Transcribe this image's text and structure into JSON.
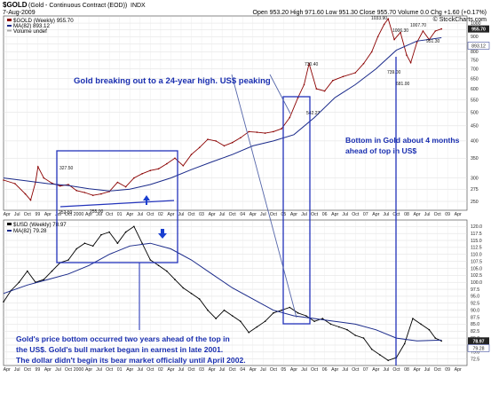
{
  "header": {
    "symbol": "$GOLD",
    "name": "(Gold - Continuous Contract (EOD))",
    "exchange": "INDX",
    "date": "7-Aug-2009",
    "ohlc": "Open 953.20  High 971.60  Low 951.30  Close 955.70  Volume 0.0  Chg +1.60 (+0.17%)",
    "brand": "© StockCharts.com"
  },
  "top_legend": {
    "main": "$GOLD (Weekly) 955.70",
    "ma": "MA(82) 893.12",
    "vol": "Volume undef"
  },
  "bottom_legend": {
    "main": "$USD (Weekly) 78.97",
    "ma": "MA(82) 79.28"
  },
  "annotations": {
    "gold_breakout": "Gold breaking out to a 24-year high. US$ peaking",
    "bottom_lines": [
      "Bottom in Gold about 4 months",
      "ahead of top in US$"
    ],
    "footnote_lines": [
      "Gold's price bottom occurred two years ahead of the top in",
      "the US$. Gold's bull market began in earnest in late 2001.",
      "The dollar didn't begin its bear market officially until April 2002."
    ]
  },
  "colors": {
    "annotation": "#1a2fb0",
    "price": "#8b0000",
    "ma": "#1a2a8a",
    "usd": "#000000"
  },
  "x_axis_labels": [
    "Apr",
    "Jul",
    "Oct",
    "99",
    "Apr",
    "Jul",
    "Oct",
    "2000",
    "Apr",
    "Jul",
    "Oct",
    "01",
    "Apr",
    "Jul",
    "Oct",
    "02",
    "Apr",
    "Jul",
    "Oct",
    "03",
    "Apr",
    "Jul",
    "Oct",
    "04",
    "Apr",
    "Jul",
    "Oct",
    "05",
    "Apr",
    "Jul",
    "Oct",
    "06",
    "Apr",
    "Jul",
    "Oct",
    "07",
    "Apr",
    "Jul",
    "Oct",
    "08",
    "Apr",
    "Jul",
    "Oct",
    "09",
    "Apr",
    "Jul",
    "Oct",
    "10"
  ],
  "chart_data": [
    {
      "type": "line",
      "title": "$GOLD (Weekly) 955.70",
      "y_scale": "log",
      "ylim": [
        235,
        1050
      ],
      "y_ticks": [
        250,
        275,
        300,
        350,
        400,
        450,
        500,
        550,
        600,
        650,
        700,
        750,
        800,
        850,
        900,
        950,
        1000
      ],
      "y_tick_labels": [
        "250",
        "275",
        "300",
        "350",
        "400",
        "450",
        "500",
        "550",
        "600",
        "650",
        "700",
        "750",
        "800",
        "850",
        "900",
        "950",
        "1000"
      ],
      "last_value_label": "955.70",
      "ma_value_label": "893.12",
      "xlim": [
        1998.92,
        2009.92
      ],
      "series": [
        {
          "name": "$GOLD (Weekly) 955.70",
          "x": [
            1998.92,
            1999.2,
            1999.45,
            1999.58,
            1999.7,
            1999.76,
            1999.9,
            2000.1,
            2000.3,
            2000.5,
            2000.7,
            2000.9,
            2001.1,
            2001.3,
            2001.5,
            2001.7,
            2001.9,
            2002.1,
            2002.3,
            2002.5,
            2002.7,
            2002.9,
            2003.1,
            2003.3,
            2003.5,
            2003.7,
            2003.9,
            2004.1,
            2004.3,
            2004.5,
            2004.7,
            2004.9,
            2005.1,
            2005.3,
            2005.5,
            2005.7,
            2005.9,
            2006.1,
            2006.25,
            2006.37,
            2006.55,
            2006.75,
            2006.95,
            2007.2,
            2007.5,
            2007.7,
            2007.9,
            2008.05,
            2008.2,
            2008.3,
            2008.45,
            2008.6,
            2008.75,
            2008.85,
            2009.0,
            2009.15,
            2009.3,
            2009.45,
            2009.6
          ],
          "y": [
            295,
            287,
            265,
            252.5,
            290,
            327.5,
            300,
            288,
            282,
            285,
            272,
            268,
            262,
            265,
            270,
            290,
            280,
            300,
            310,
            318,
            322,
            335,
            350,
            330,
            360,
            380,
            405,
            400,
            385,
            395,
            410,
            430,
            428,
            425,
            430,
            440,
            480,
            560,
            620,
            730,
            600,
            590,
            640,
            660,
            680,
            730,
            800,
            900,
            990,
            1033.9,
            880,
            930,
            780,
            735,
            860,
            940,
            880,
            940,
            955.7
          ]
        },
        {
          "name": "MA(82) 893.12",
          "x": [
            1998.92,
            1999.5,
            2000.0,
            2000.5,
            2001.0,
            2001.5,
            2002.0,
            2002.5,
            2003.0,
            2003.5,
            2004.0,
            2004.5,
            2005.0,
            2005.5,
            2006.0,
            2006.5,
            2007.0,
            2007.5,
            2008.0,
            2008.5,
            2009.0,
            2009.6
          ],
          "y": [
            300,
            293,
            287,
            283,
            276,
            271,
            275,
            285,
            300,
            320,
            340,
            360,
            385,
            400,
            420,
            480,
            560,
            620,
            700,
            810,
            870,
            893.12
          ]
        }
      ],
      "annotations_values": [
        "327.50",
        "252.50",
        "255.00",
        "730.40",
        "542.27",
        "1033.90",
        "1006.30",
        "1007.70",
        "739.00",
        "681.00",
        "951.30"
      ]
    },
    {
      "type": "line",
      "title": "$USD (Weekly) 78.97",
      "ylim": [
        70.5,
        122
      ],
      "y_ticks": [
        72.5,
        75,
        77.5,
        80,
        82.5,
        85,
        87.5,
        90,
        92.5,
        95,
        97.5,
        100,
        102.5,
        105,
        107.5,
        110,
        112.5,
        115,
        117.5,
        120
      ],
      "y_tick_labels": [
        "72.5",
        "75.0",
        "77.5",
        "80.0",
        "82.5",
        "85.0",
        "87.5",
        "90.0",
        "92.5",
        "95.0",
        "97.5",
        "100.0",
        "102.5",
        "105.0",
        "107.5",
        "110.0",
        "112.5",
        "115.0",
        "117.5",
        "120.0"
      ],
      "last_value_label": "78.97",
      "ma_value_label": "79.28",
      "xlim": [
        1998.92,
        2009.92
      ],
      "series": [
        {
          "name": "$USD (Weekly) 78.97",
          "x": [
            1998.92,
            1999.1,
            1999.3,
            1999.5,
            1999.7,
            1999.9,
            2000.1,
            2000.3,
            2000.5,
            2000.7,
            2000.9,
            2001.1,
            2001.3,
            2001.5,
            2001.7,
            2001.9,
            2002.1,
            2002.3,
            2002.5,
            2002.7,
            2002.9,
            2003.1,
            2003.3,
            2003.5,
            2003.7,
            2003.9,
            2004.1,
            2004.3,
            2004.5,
            2004.7,
            2004.9,
            2005.1,
            2005.3,
            2005.5,
            2005.7,
            2005.9,
            2006.1,
            2006.3,
            2006.5,
            2006.7,
            2006.9,
            2007.1,
            2007.3,
            2007.5,
            2007.7,
            2007.9,
            2008.1,
            2008.3,
            2008.5,
            2008.7,
            2008.9,
            2009.1,
            2009.3,
            2009.45,
            2009.6
          ],
          "y": [
            93,
            97,
            100,
            104,
            100,
            101,
            104,
            107,
            108,
            112,
            114,
            113,
            117,
            118,
            114,
            118,
            120,
            114,
            108,
            106,
            104,
            101,
            98,
            96,
            94,
            90,
            87,
            90,
            88,
            86,
            82,
            84,
            86,
            89,
            90,
            91,
            89,
            88,
            86,
            87,
            85,
            84,
            83,
            81,
            80,
            76,
            74,
            72,
            73,
            78,
            87,
            85,
            83,
            80,
            79
          ]
        },
        {
          "name": "MA(82) 79.28",
          "x": [
            1998.92,
            1999.5,
            2000.0,
            2000.5,
            2001.0,
            2001.5,
            2002.0,
            2002.5,
            2003.0,
            2003.5,
            2004.0,
            2004.5,
            2005.0,
            2005.5,
            2006.0,
            2006.5,
            2007.0,
            2007.5,
            2008.0,
            2008.5,
            2009.0,
            2009.6
          ],
          "y": [
            96,
            99,
            101,
            103,
            106,
            110,
            113,
            114,
            112,
            108,
            103,
            98,
            94,
            90,
            88,
            87,
            86,
            85,
            83,
            80,
            79,
            79.28
          ]
        }
      ]
    }
  ]
}
